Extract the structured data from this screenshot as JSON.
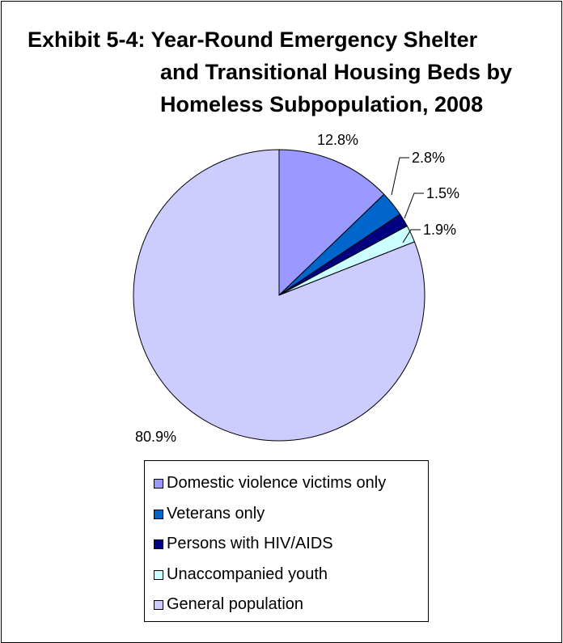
{
  "chart_data": {
    "type": "pie",
    "title_lines": [
      "Exhibit 5-4: Year-Round Emergency Shelter",
      "and Transitional Housing Beds by",
      "Homeless Subpopulation, 2008"
    ],
    "categories": [
      "Domestic violence victims only",
      "Veterans only",
      "Persons with HIV/AIDS",
      "Unaccompanied youth",
      "General population"
    ],
    "values": [
      12.8,
      2.8,
      1.5,
      1.9,
      80.9
    ],
    "value_labels": [
      "12.8%",
      "2.8%",
      "1.5%",
      "1.9%",
      "80.9%"
    ],
    "colors": [
      "#9999ff",
      "#0066cc",
      "#000080",
      "#ccffff",
      "#ccccff"
    ],
    "start_angle": "12 o'clock",
    "direction": "clockwise",
    "legend_position": "bottom"
  }
}
